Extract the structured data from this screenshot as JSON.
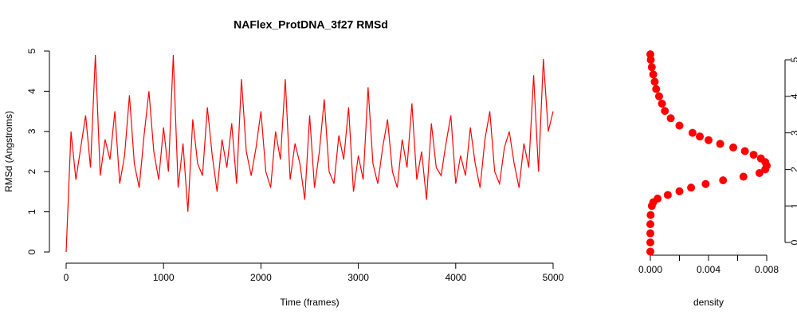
{
  "chart_data": [
    {
      "type": "line",
      "title": "NAFlex_ProtDNA_3f27 RMSd",
      "x_label": "Time (frames)",
      "y_label": "RMSd (Angstroms)",
      "x": [
        0,
        50,
        100,
        150,
        200,
        250,
        300,
        350,
        400,
        450,
        500,
        550,
        600,
        650,
        700,
        750,
        800,
        850,
        900,
        950,
        1000,
        1050,
        1100,
        1150,
        1200,
        1250,
        1300,
        1350,
        1400,
        1450,
        1500,
        1550,
        1600,
        1650,
        1700,
        1750,
        1800,
        1850,
        1900,
        1950,
        2000,
        2050,
        2100,
        2150,
        2200,
        2250,
        2300,
        2350,
        2400,
        2450,
        2500,
        2550,
        2600,
        2650,
        2700,
        2750,
        2800,
        2850,
        2900,
        2950,
        3000,
        3050,
        3100,
        3150,
        3200,
        3250,
        3300,
        3350,
        3400,
        3450,
        3500,
        3550,
        3600,
        3650,
        3700,
        3750,
        3800,
        3850,
        3900,
        3950,
        4000,
        4050,
        4100,
        4150,
        4200,
        4250,
        4300,
        4350,
        4400,
        4450,
        4500,
        4550,
        4600,
        4650,
        4700,
        4750,
        4800,
        4850,
        4900,
        4950,
        5000
      ],
      "series": [
        {
          "color": "#ff0000",
          "values": [
            0,
            3.0,
            1.8,
            2.6,
            3.4,
            2.1,
            4.9,
            1.9,
            2.8,
            2.3,
            3.5,
            1.7,
            2.4,
            3.9,
            2.2,
            1.6,
            2.9,
            4.0,
            2.5,
            1.8,
            3.1,
            2.0,
            4.9,
            1.6,
            2.7,
            1.0,
            3.3,
            2.2,
            1.9,
            3.6,
            2.4,
            1.5,
            2.8,
            2.1,
            3.2,
            1.7,
            4.3,
            2.5,
            1.9,
            2.6,
            3.5,
            2.0,
            1.6,
            3.0,
            2.3,
            4.3,
            1.8,
            2.7,
            2.2,
            1.3,
            3.4,
            1.6,
            2.5,
            3.8,
            2.0,
            1.7,
            2.9,
            2.3,
            3.6,
            1.5,
            2.4,
            1.8,
            4.1,
            2.2,
            1.7,
            2.6,
            3.3,
            2.0,
            1.6,
            2.8,
            2.1,
            3.7,
            1.8,
            2.5,
            1.3,
            3.2,
            2.1,
            1.9,
            2.7,
            3.4,
            1.7,
            2.4,
            1.9,
            3.1,
            2.2,
            1.6,
            2.8,
            3.5,
            2.0,
            1.7,
            2.6,
            3.0,
            2.2,
            1.6,
            2.7,
            2.1,
            4.4,
            2.0,
            4.8,
            3.0,
            3.5
          ]
        }
      ],
      "xlim": [
        0,
        5000
      ],
      "xticks": [
        0,
        1000,
        2000,
        3000,
        4000,
        5000
      ],
      "ylim": [
        0,
        5
      ],
      "yticks": [
        0,
        1,
        2,
        3,
        4,
        5
      ]
    },
    {
      "type": "scatter",
      "x_label": "density",
      "x": [
        0,
        0,
        0,
        0,
        2e-05,
        0.0001,
        0.0002,
        0.0005,
        0.0012,
        0.002,
        0.0028,
        0.0038,
        0.005,
        0.0064,
        0.0075,
        0.0079,
        0.008,
        0.0079,
        0.0076,
        0.0071,
        0.0065,
        0.0057,
        0.0048,
        0.004,
        0.0034,
        0.0029,
        0.002,
        0.0014,
        0.001,
        0.0008,
        0.0006,
        0.0004,
        0.0003,
        0.0002,
        0.0001,
        3e-05,
        0
      ],
      "series": [
        {
          "color": "#ff0000",
          "values": [
            -0.25,
            0,
            0.25,
            0.5,
            0.75,
            1.0,
            1.1,
            1.2,
            1.3,
            1.4,
            1.5,
            1.6,
            1.7,
            1.8,
            1.9,
            2.0,
            2.1,
            2.2,
            2.3,
            2.4,
            2.5,
            2.6,
            2.7,
            2.8,
            2.9,
            3.0,
            3.2,
            3.4,
            3.6,
            3.8,
            4.0,
            4.2,
            4.4,
            4.6,
            4.8,
            5.0,
            5.15
          ]
        }
      ],
      "xlim": [
        0,
        0.008
      ],
      "xticks": [
        {
          "value": 0,
          "label": "0.000"
        },
        {
          "value": 0.002,
          "label": null
        },
        {
          "value": 0.004,
          "label": "0.004"
        },
        {
          "value": 0.006,
          "label": null
        },
        {
          "value": 0.008,
          "label": "0.008"
        }
      ],
      "ylim": [
        0,
        5
      ],
      "yticks": [
        0,
        1,
        2,
        3,
        4,
        5
      ],
      "y_axis_side": "right"
    }
  ]
}
